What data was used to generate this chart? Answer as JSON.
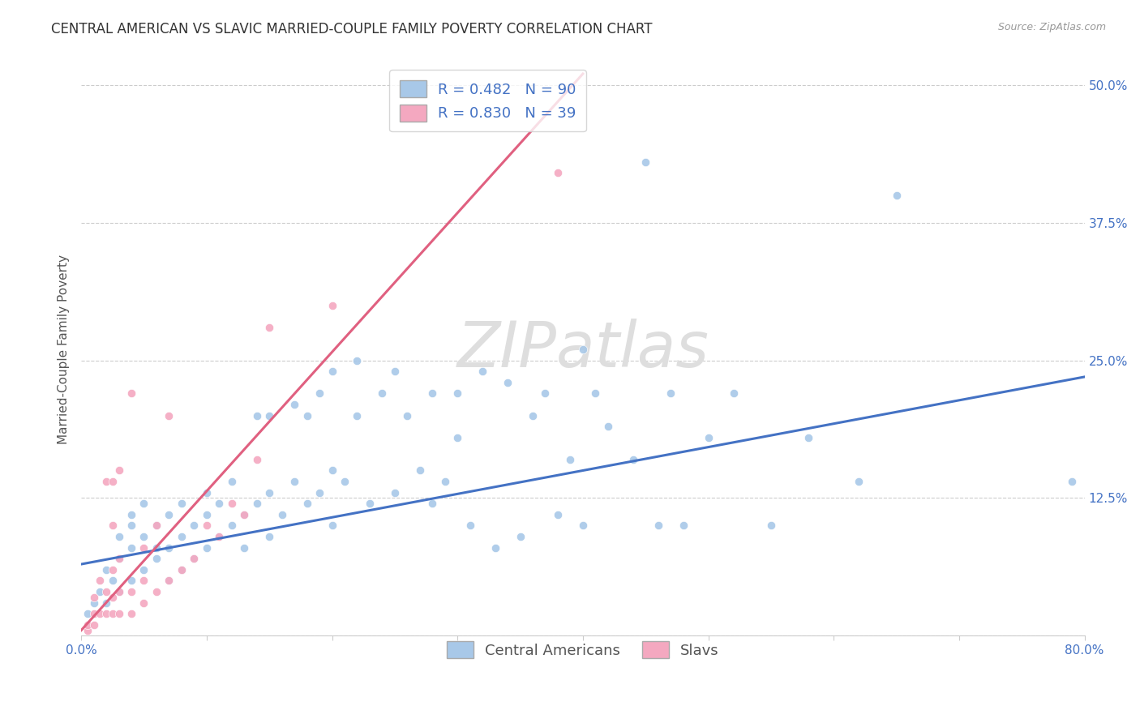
{
  "title": "CENTRAL AMERICAN VS SLAVIC MARRIED-COUPLE FAMILY POVERTY CORRELATION CHART",
  "source": "Source: ZipAtlas.com",
  "ylabel": "Married-Couple Family Poverty",
  "watermark": "ZIPatlas",
  "xlim": [
    0.0,
    0.8
  ],
  "ylim": [
    0.0,
    0.52
  ],
  "xticks": [
    0.0,
    0.1,
    0.2,
    0.3,
    0.4,
    0.5,
    0.6,
    0.7,
    0.8
  ],
  "xticklabels": [
    "0.0%",
    "",
    "",
    "",
    "",
    "",
    "",
    "",
    "80.0%"
  ],
  "yticks": [
    0.0,
    0.125,
    0.25,
    0.375,
    0.5
  ],
  "yticklabels": [
    "",
    "12.5%",
    "25.0%",
    "37.5%",
    "50.0%"
  ],
  "blue_R": 0.482,
  "blue_N": 90,
  "pink_R": 0.83,
  "pink_N": 39,
  "blue_color": "#A8C8E8",
  "pink_color": "#F4A8C0",
  "blue_line_color": "#4472C4",
  "pink_line_color": "#E06080",
  "legend_label_blue": "Central Americans",
  "legend_label_pink": "Slavs",
  "blue_scatter_x": [
    0.005,
    0.01,
    0.015,
    0.02,
    0.02,
    0.025,
    0.03,
    0.03,
    0.03,
    0.04,
    0.04,
    0.04,
    0.04,
    0.05,
    0.05,
    0.05,
    0.06,
    0.06,
    0.06,
    0.07,
    0.07,
    0.07,
    0.08,
    0.08,
    0.08,
    0.09,
    0.09,
    0.1,
    0.1,
    0.1,
    0.11,
    0.11,
    0.12,
    0.12,
    0.13,
    0.13,
    0.14,
    0.14,
    0.15,
    0.15,
    0.15,
    0.16,
    0.17,
    0.17,
    0.18,
    0.18,
    0.19,
    0.19,
    0.2,
    0.2,
    0.2,
    0.21,
    0.22,
    0.22,
    0.23,
    0.24,
    0.25,
    0.25,
    0.26,
    0.27,
    0.28,
    0.28,
    0.29,
    0.3,
    0.3,
    0.31,
    0.32,
    0.33,
    0.34,
    0.35,
    0.36,
    0.37,
    0.38,
    0.39,
    0.4,
    0.4,
    0.41,
    0.42,
    0.44,
    0.45,
    0.46,
    0.47,
    0.48,
    0.5,
    0.52,
    0.55,
    0.58,
    0.62,
    0.65,
    0.79
  ],
  "blue_scatter_y": [
    0.02,
    0.03,
    0.04,
    0.03,
    0.06,
    0.05,
    0.04,
    0.07,
    0.09,
    0.05,
    0.08,
    0.11,
    0.1,
    0.06,
    0.09,
    0.12,
    0.07,
    0.1,
    0.08,
    0.05,
    0.08,
    0.11,
    0.06,
    0.09,
    0.12,
    0.07,
    0.1,
    0.08,
    0.11,
    0.13,
    0.09,
    0.12,
    0.1,
    0.14,
    0.08,
    0.11,
    0.12,
    0.2,
    0.09,
    0.13,
    0.2,
    0.11,
    0.14,
    0.21,
    0.12,
    0.2,
    0.13,
    0.22,
    0.1,
    0.15,
    0.24,
    0.14,
    0.2,
    0.25,
    0.12,
    0.22,
    0.13,
    0.24,
    0.2,
    0.15,
    0.22,
    0.12,
    0.14,
    0.22,
    0.18,
    0.1,
    0.24,
    0.08,
    0.23,
    0.09,
    0.2,
    0.22,
    0.11,
    0.16,
    0.26,
    0.1,
    0.22,
    0.19,
    0.16,
    0.43,
    0.1,
    0.22,
    0.1,
    0.18,
    0.22,
    0.1,
    0.18,
    0.14,
    0.4,
    0.14
  ],
  "pink_scatter_x": [
    0.005,
    0.005,
    0.01,
    0.01,
    0.01,
    0.015,
    0.015,
    0.02,
    0.02,
    0.02,
    0.025,
    0.025,
    0.025,
    0.025,
    0.025,
    0.03,
    0.03,
    0.03,
    0.03,
    0.04,
    0.04,
    0.04,
    0.05,
    0.05,
    0.05,
    0.06,
    0.06,
    0.07,
    0.07,
    0.08,
    0.09,
    0.1,
    0.11,
    0.12,
    0.13,
    0.14,
    0.15,
    0.2,
    0.38
  ],
  "pink_scatter_y": [
    0.005,
    0.01,
    0.01,
    0.02,
    0.035,
    0.02,
    0.05,
    0.02,
    0.04,
    0.14,
    0.02,
    0.035,
    0.06,
    0.1,
    0.14,
    0.02,
    0.04,
    0.07,
    0.15,
    0.02,
    0.04,
    0.22,
    0.03,
    0.05,
    0.08,
    0.04,
    0.1,
    0.05,
    0.2,
    0.06,
    0.07,
    0.1,
    0.09,
    0.12,
    0.11,
    0.16,
    0.28,
    0.3,
    0.42
  ],
  "blue_line_x": [
    0.0,
    0.8
  ],
  "blue_line_y": [
    0.065,
    0.235
  ],
  "pink_line_x": [
    0.0,
    0.4
  ],
  "pink_line_y": [
    0.005,
    0.51
  ],
  "background_color": "#FFFFFF",
  "grid_color": "#CCCCCC",
  "title_fontsize": 12,
  "axis_label_fontsize": 11,
  "tick_fontsize": 11,
  "legend_fontsize": 13,
  "watermark_fontsize": 56,
  "watermark_color": "#DEDEDE",
  "title_color": "#333333",
  "source_color": "#999999",
  "tick_color": "#4472C4"
}
